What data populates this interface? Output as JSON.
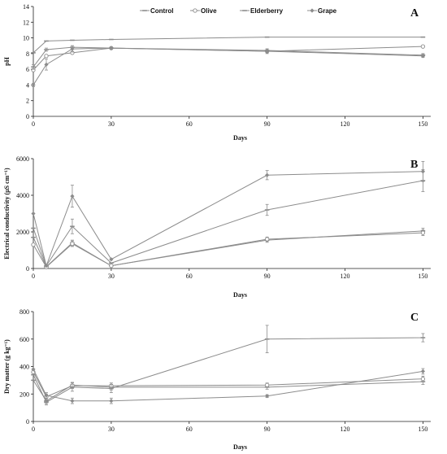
{
  "colors": {
    "line": "#8c8c8c",
    "axis": "#222222",
    "open_marker_fill": "#ffffff"
  },
  "chart_data": [
    {
      "type": "line",
      "panel_letter": "A",
      "xlabel": "Days",
      "ylabel": "pH",
      "x_ticks": [
        0,
        30,
        60,
        90,
        120,
        150
      ],
      "y_ticks": [
        0,
        2,
        4,
        6,
        8,
        10,
        12,
        14
      ],
      "xlim": [
        0,
        153
      ],
      "ylim": [
        0,
        14
      ],
      "grid": false,
      "legend_position": "top",
      "x": [
        0,
        5,
        15,
        30,
        90,
        150
      ],
      "series": [
        {
          "name": "Control",
          "marker": "minus",
          "values": [
            8.1,
            9.6,
            9.7,
            9.8,
            10.1,
            10.1
          ],
          "errors": [
            0,
            0,
            0,
            0,
            0,
            0
          ]
        },
        {
          "name": "Olive",
          "marker": "circle-open",
          "values": [
            5.9,
            7.7,
            8.1,
            8.7,
            8.3,
            8.9
          ],
          "errors": [
            0,
            0,
            0,
            0,
            0,
            0
          ]
        },
        {
          "name": "Elderberry",
          "marker": "minus",
          "values": [
            6.3,
            8.5,
            8.8,
            8.7,
            8.4,
            7.8
          ],
          "errors": [
            0.3,
            0.2,
            0.2,
            0,
            0.2,
            0.2
          ]
        },
        {
          "name": "Grape",
          "marker": "diamond",
          "values": [
            4.0,
            6.6,
            8.6,
            8.7,
            8.3,
            7.7
          ],
          "errors": [
            0.2,
            0.7,
            0.4,
            0,
            0.3,
            0.2
          ]
        }
      ]
    },
    {
      "type": "line",
      "panel_letter": "B",
      "xlabel": "Days",
      "ylabel": "Electrical conductivity (μS cm⁻¹)",
      "x_ticks": [
        0,
        30,
        60,
        90,
        120,
        150
      ],
      "y_ticks": [
        0,
        2000,
        4000,
        6000
      ],
      "xlim": [
        0,
        153
      ],
      "ylim": [
        0,
        6000
      ],
      "grid": false,
      "x": [
        0,
        5,
        15,
        30,
        90,
        150
      ],
      "series": [
        {
          "name": "Control",
          "marker": "minus",
          "values": [
            1700,
            100,
            1400,
            150,
            1550,
            2050
          ],
          "errors": [
            0,
            0,
            150,
            0,
            120,
            150
          ]
        },
        {
          "name": "Olive",
          "marker": "circle-open",
          "values": [
            1300,
            80,
            1350,
            150,
            1600,
            1950
          ],
          "errors": [
            0,
            0,
            150,
            0,
            120,
            150
          ]
        },
        {
          "name": "Elderberry",
          "marker": "minus",
          "values": [
            2200,
            150,
            2300,
            300,
            3200,
            4800
          ],
          "errors": [
            0,
            0,
            400,
            0,
            300,
            600
          ]
        },
        {
          "name": "Grape",
          "marker": "diamond",
          "values": [
            3000,
            150,
            3950,
            500,
            5100,
            5300
          ],
          "errors": [
            0,
            0,
            600,
            0,
            250,
            550
          ]
        }
      ]
    },
    {
      "type": "line",
      "panel_letter": "C",
      "xlabel": "Days",
      "ylabel": "Dry matter (g kg⁻¹)",
      "x_ticks": [
        0,
        30,
        60,
        90,
        120,
        150
      ],
      "y_ticks": [
        0,
        200,
        400,
        600,
        800
      ],
      "xlim": [
        0,
        153
      ],
      "ylim": [
        0,
        800
      ],
      "grid": false,
      "x": [
        0,
        5,
        15,
        30,
        90,
        150
      ],
      "series": [
        {
          "name": "Control",
          "marker": "minus",
          "values": [
            300,
            150,
            265,
            250,
            250,
            290
          ],
          "errors": [
            0,
            20,
            20,
            20,
            15,
            20
          ]
        },
        {
          "name": "Olive",
          "marker": "circle-open",
          "values": [
            360,
            180,
            260,
            260,
            265,
            310
          ],
          "errors": [
            0,
            20,
            20,
            20,
            15,
            20
          ]
        },
        {
          "name": "Elderberry",
          "marker": "minus",
          "values": [
            340,
            140,
            250,
            240,
            600,
            610
          ],
          "errors": [
            0,
            20,
            30,
            30,
            100,
            30
          ]
        },
        {
          "name": "Grape",
          "marker": "diamond",
          "values": [
            380,
            190,
            150,
            150,
            185,
            365
          ],
          "errors": [
            0,
            20,
            20,
            20,
            10,
            20
          ]
        }
      ]
    }
  ]
}
